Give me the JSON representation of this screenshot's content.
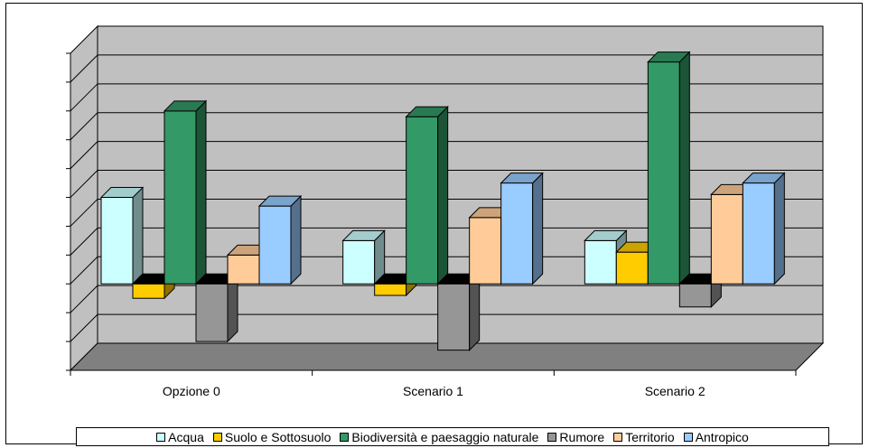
{
  "chart_data": {
    "type": "bar",
    "categories": [
      "Opzione 0",
      "Scenario 1",
      "Scenario 2"
    ],
    "series": [
      {
        "name": "Acqua",
        "color": "#CCFFFF",
        "values": [
          3,
          1.5,
          1.5
        ]
      },
      {
        "name": "Suolo e Sottosuolo",
        "color": "#FFCC00",
        "values": [
          -0.5,
          -0.4,
          1.1
        ]
      },
      {
        "name": "Biodiversità e paesaggio naturale",
        "color": "#339966",
        "values": [
          6,
          5.8,
          7.7
        ]
      },
      {
        "name": "Rumore",
        "color": "#969696",
        "values": [
          -2,
          -2.3,
          -0.8
        ]
      },
      {
        "name": "Territorio",
        "color": "#FFCC99",
        "values": [
          1,
          2.3,
          3.1
        ]
      },
      {
        "name": "Antropico",
        "color": "#99CCFF",
        "values": [
          2.7,
          3.5,
          3.5
        ]
      }
    ],
    "ylim": [
      -3,
      8
    ],
    "grid": true,
    "legend_position": "bottom",
    "title": "",
    "xlabel": "",
    "ylabel": ""
  }
}
